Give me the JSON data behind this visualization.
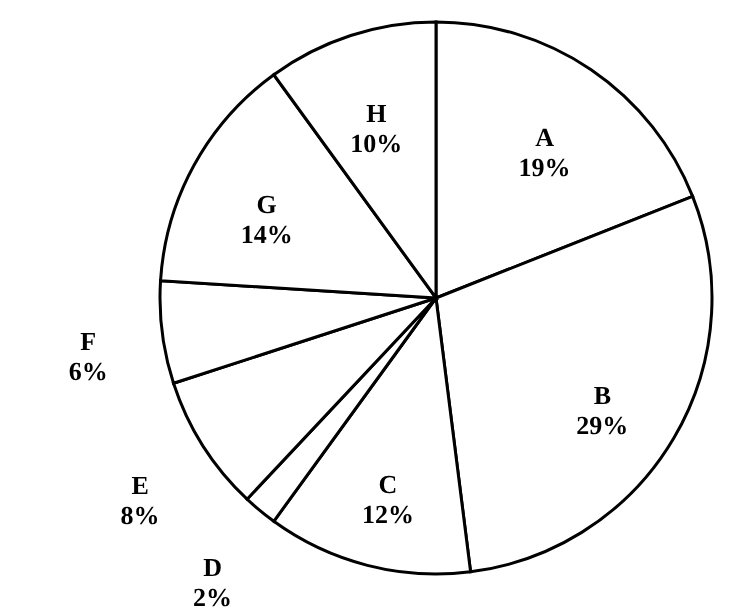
{
  "chart_data": {
    "type": "pie",
    "categories": [
      "A",
      "B",
      "C",
      "D",
      "E",
      "F",
      "G",
      "H"
    ],
    "values": [
      19,
      29,
      12,
      2,
      8,
      6,
      14,
      10
    ],
    "value_labels": [
      "19%",
      "29%",
      "12%",
      "2%",
      "8%",
      "6%",
      "14%",
      "10%"
    ],
    "colors": [
      "#ffffff",
      "#ffffff",
      "#ffffff",
      "#ffffff",
      "#ffffff",
      "#ffffff",
      "#ffffff",
      "#ffffff"
    ]
  }
}
